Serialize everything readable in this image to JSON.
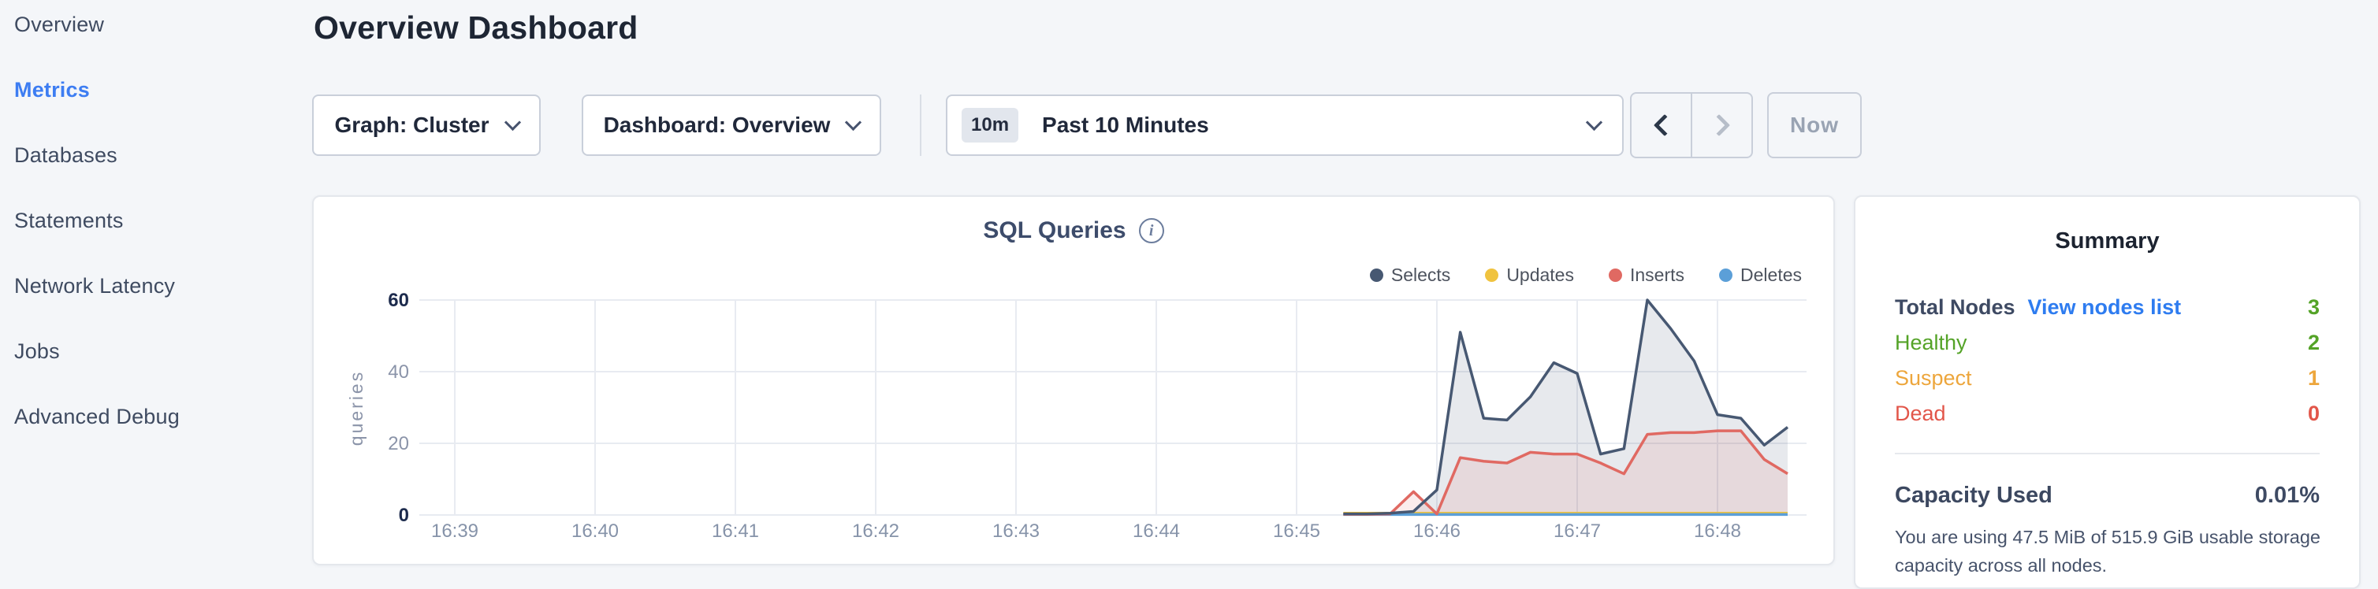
{
  "colors": {
    "page_bg": "#f4f6f9",
    "accent_blue": "#3d7df2",
    "link_blue": "#2e7cf0",
    "green": "#54a327",
    "orange": "#eda63c",
    "red": "#e2564a",
    "selects": "#475872",
    "updates": "#f0c33f",
    "inserts": "#e06962",
    "deletes": "#5b9fd8"
  },
  "sidebar": {
    "items": [
      {
        "label": "Overview",
        "active": false
      },
      {
        "label": "Metrics",
        "active": true
      },
      {
        "label": "Databases",
        "active": false
      },
      {
        "label": "Statements",
        "active": false
      },
      {
        "label": "Network Latency",
        "active": false
      },
      {
        "label": "Jobs",
        "active": false
      },
      {
        "label": "Advanced Debug",
        "active": false
      }
    ]
  },
  "header": {
    "title": "Overview Dashboard"
  },
  "toolbar": {
    "graph_dropdown": "Graph: Cluster",
    "dashboard_dropdown": "Dashboard: Overview",
    "time_range": {
      "badge": "10m",
      "label": "Past 10 Minutes"
    },
    "now_label": "Now"
  },
  "chart_card": {
    "title": "SQL Queries",
    "info_glyph": "i",
    "chart_data": {
      "type": "area",
      "title": "SQL Queries",
      "ylabel": "queries",
      "ylim": [
        0,
        60
      ],
      "y_ticks": [
        0,
        20,
        40,
        60
      ],
      "x_ticks": [
        "16:39",
        "16:40",
        "16:41",
        "16:42",
        "16:43",
        "16:44",
        "16:45",
        "16:46",
        "16:47",
        "16:48"
      ],
      "series_start_time": "16:45:20",
      "sample_interval_seconds": 10,
      "legend_position": "top-right",
      "grid": true,
      "series": [
        {
          "name": "Selects",
          "color": "#475872",
          "fill": "rgba(71,88,114,0.13)",
          "values": [
            0.3,
            0.3,
            0.5,
            1,
            7,
            51,
            27,
            26.5,
            33,
            42.5,
            39.5,
            17,
            18.5,
            60,
            52,
            43,
            28,
            27,
            19.5,
            24.5
          ]
        },
        {
          "name": "Updates",
          "color": "#f0c33f",
          "fill": "none",
          "values": [
            0.5,
            0.5,
            0.5,
            0.5,
            0.5,
            0.5,
            0.5,
            0.5,
            0.5,
            0.5,
            0.5,
            0.5,
            0.5,
            0.5,
            0.5,
            0.5,
            0.5,
            0.5,
            0.5,
            0.5
          ]
        },
        {
          "name": "Inserts",
          "color": "#e06962",
          "fill": "rgba(224,105,98,0.12)",
          "values": [
            0.2,
            0.2,
            0.3,
            6.5,
            0.3,
            16,
            15,
            14.5,
            17.5,
            17,
            17,
            14.5,
            11.5,
            22.5,
            23,
            23,
            23.5,
            23.5,
            15.5,
            11.5
          ]
        },
        {
          "name": "Deletes",
          "color": "#5b9fd8",
          "fill": "none",
          "values": [
            0.15,
            0.15,
            0.15,
            0.15,
            0.15,
            0.15,
            0.15,
            0.15,
            0.15,
            0.15,
            0.15,
            0.15,
            0.15,
            0.15,
            0.15,
            0.15,
            0.15,
            0.15,
            0.15,
            0.15
          ]
        }
      ]
    }
  },
  "summary": {
    "title": "Summary",
    "rows": [
      {
        "label": "Total Nodes",
        "link": "View nodes list",
        "value": "3",
        "label_color": "#3e4a63",
        "value_color": "#54a327",
        "strong": true
      },
      {
        "label": "Healthy",
        "value": "2",
        "label_color": "#54a327",
        "value_color": "#54a327",
        "strong": false
      },
      {
        "label": "Suspect",
        "value": "1",
        "label_color": "#eda63c",
        "value_color": "#eda63c",
        "strong": false
      },
      {
        "label": "Dead",
        "value": "0",
        "label_color": "#e2564a",
        "value_color": "#e2564a",
        "strong": false
      }
    ],
    "capacity": {
      "label": "Capacity Used",
      "value": "0.01%",
      "value_color": "#54a327",
      "description": "You are using 47.5 MiB of 515.9 GiB usable storage capacity across all nodes."
    }
  }
}
